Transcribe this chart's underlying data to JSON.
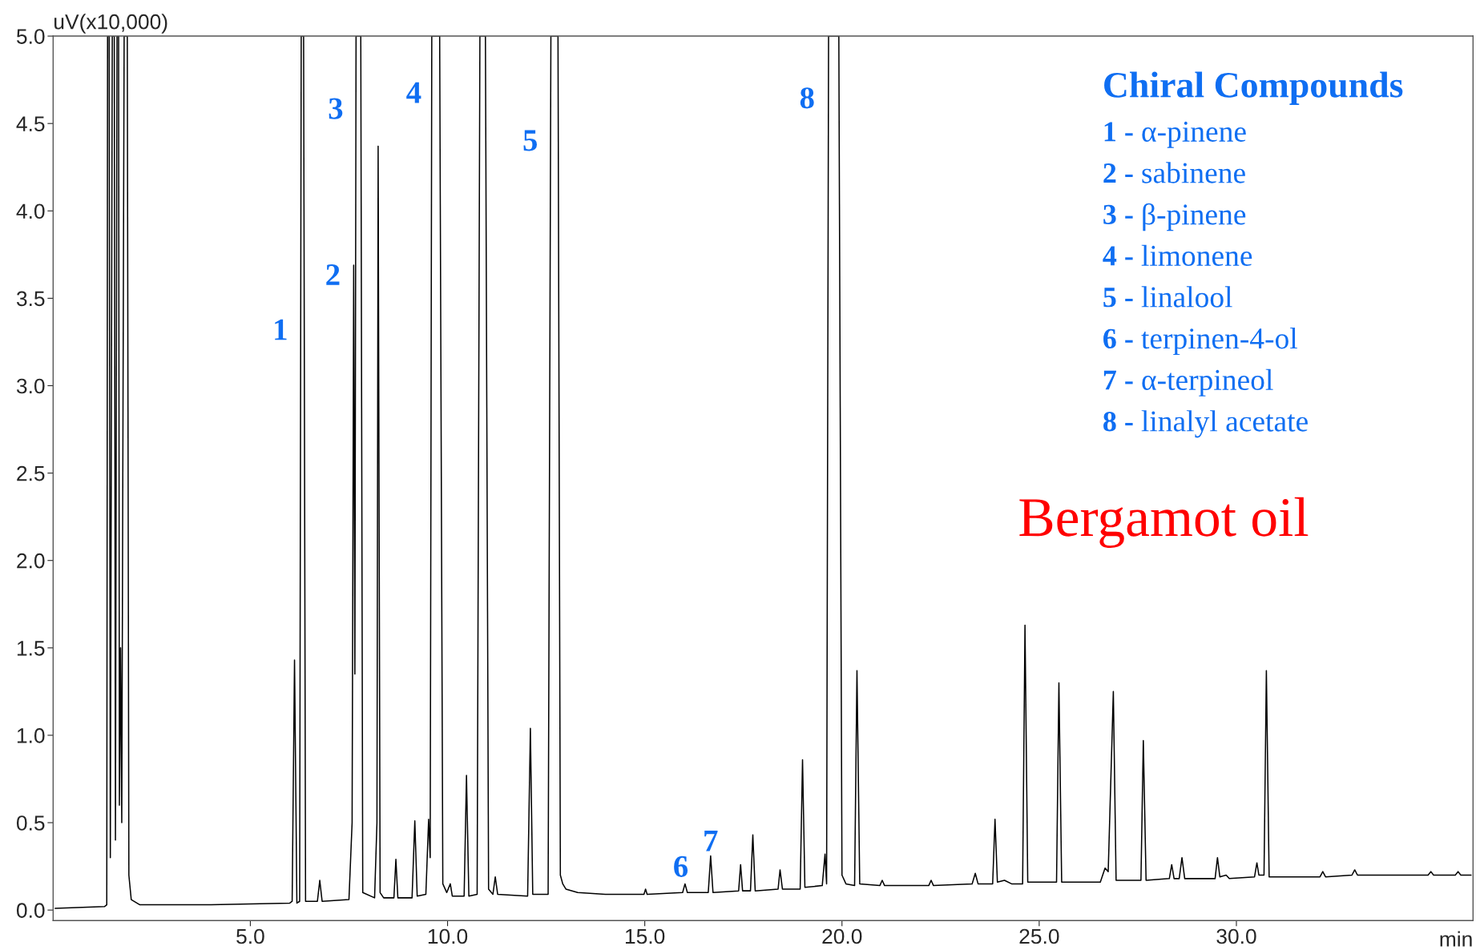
{
  "chart_data": {
    "type": "line",
    "xlabel": "min",
    "ylabel": "uV(x10,000)",
    "x": [
      0.05,
      1.3,
      1.36,
      1.38,
      1.42,
      1.45,
      1.5,
      1.55,
      1.58,
      1.62,
      1.66,
      1.68,
      1.71,
      1.74,
      1.8,
      1.88,
      1.92,
      1.98,
      2.2,
      4.0,
      6.0,
      6.06,
      6.12,
      6.18,
      6.25,
      6.29,
      6.35,
      6.4,
      6.7,
      6.76,
      6.82,
      7.5,
      7.58,
      7.62,
      7.65,
      7.68,
      7.8,
      7.85,
      8.15,
      8.21,
      8.24,
      8.29,
      8.38,
      8.64,
      8.69,
      8.74,
      9.1,
      9.17,
      9.23,
      9.45,
      9.52,
      9.56,
      9.6,
      9.8,
      9.88,
      9.98,
      10.07,
      10.12,
      10.42,
      10.48,
      10.54,
      10.75,
      10.82,
      10.96,
      11.04,
      11.15,
      11.21,
      11.27,
      12.03,
      12.1,
      12.16,
      12.55,
      12.62,
      12.8,
      12.86,
      12.92,
      13.0,
      13.3,
      14.0,
      14.98,
      15.02,
      15.06,
      15.96,
      16.02,
      16.08,
      16.61,
      16.67,
      16.73,
      17.38,
      17.43,
      17.48,
      17.68,
      17.74,
      17.8,
      18.38,
      18.43,
      18.49,
      18.94,
      19.0,
      19.06,
      19.5,
      19.57,
      19.61,
      19.66,
      19.92,
      20.0,
      20.1,
      20.32,
      20.38,
      20.45,
      20.96,
      21.02,
      21.08,
      22.2,
      22.26,
      22.32,
      23.3,
      23.38,
      23.45,
      23.82,
      23.88,
      23.94,
      24.12,
      24.3,
      24.58,
      24.64,
      24.71,
      25.44,
      25.5,
      25.57,
      26.55,
      26.67,
      26.75,
      26.88,
      26.95,
      27.58,
      27.64,
      27.71,
      28.3,
      28.36,
      28.42,
      28.55,
      28.62,
      28.69,
      29.46,
      29.52,
      29.58,
      29.74,
      29.82,
      30.46,
      30.52,
      30.57,
      30.7,
      30.76,
      30.83,
      32.12,
      32.19,
      32.26,
      32.93,
      33.0,
      33.07,
      34.86,
      34.93,
      35.0,
      35.55,
      35.62,
      35.69,
      35.95
    ],
    "series": [
      {
        "color": "#000000",
        "values": [
          0.01,
          0.02,
          0.03,
          5.0,
          5.0,
          0.3,
          5.0,
          5.0,
          0.4,
          5.0,
          5.0,
          0.6,
          1.5,
          0.5,
          5.0,
          5.0,
          0.2,
          0.06,
          0.03,
          0.03,
          0.04,
          0.05,
          1.43,
          0.04,
          0.05,
          5.0,
          5.0,
          0.05,
          0.05,
          0.17,
          0.05,
          0.06,
          0.5,
          3.69,
          1.35,
          5.0,
          5.0,
          0.1,
          0.07,
          0.5,
          4.37,
          0.1,
          0.07,
          0.07,
          0.29,
          0.07,
          0.07,
          0.51,
          0.08,
          0.09,
          0.52,
          0.3,
          5.0,
          5.0,
          0.15,
          0.1,
          0.15,
          0.08,
          0.08,
          0.77,
          0.08,
          0.09,
          5.0,
          5.0,
          0.12,
          0.09,
          0.19,
          0.09,
          0.08,
          1.04,
          0.09,
          0.09,
          5.0,
          5.0,
          0.2,
          0.15,
          0.12,
          0.1,
          0.09,
          0.09,
          0.12,
          0.09,
          0.1,
          0.15,
          0.1,
          0.1,
          0.31,
          0.1,
          0.11,
          0.26,
          0.11,
          0.11,
          0.43,
          0.11,
          0.12,
          0.23,
          0.12,
          0.12,
          0.86,
          0.13,
          0.14,
          0.32,
          0.15,
          5.0,
          5.0,
          0.2,
          0.15,
          0.14,
          1.37,
          0.15,
          0.14,
          0.17,
          0.14,
          0.14,
          0.17,
          0.14,
          0.15,
          0.21,
          0.15,
          0.15,
          0.52,
          0.16,
          0.17,
          0.15,
          0.15,
          1.63,
          0.16,
          0.16,
          1.3,
          0.16,
          0.16,
          0.24,
          0.22,
          1.25,
          0.17,
          0.17,
          0.97,
          0.17,
          0.18,
          0.26,
          0.18,
          0.18,
          0.3,
          0.18,
          0.18,
          0.3,
          0.19,
          0.2,
          0.18,
          0.19,
          0.27,
          0.2,
          0.2,
          1.37,
          0.19,
          0.19,
          0.22,
          0.19,
          0.2,
          0.23,
          0.2,
          0.2,
          0.22,
          0.2,
          0.2,
          0.22,
          0.2,
          0.2
        ]
      }
    ],
    "xlim": [
      0,
      36
    ],
    "ylim": [
      -0.06,
      5.0
    ],
    "xticks": [
      {
        "value": 5,
        "label": "5.0"
      },
      {
        "value": 10,
        "label": "10.0"
      },
      {
        "value": 15,
        "label": "15.0"
      },
      {
        "value": 20,
        "label": "20.0"
      },
      {
        "value": 25,
        "label": "25.0"
      },
      {
        "value": 30,
        "label": "30.0"
      }
    ],
    "yticks": [
      {
        "value": 0,
        "label": "0.0"
      },
      {
        "value": 0.5,
        "label": "0.5"
      },
      {
        "value": 1,
        "label": "1.0"
      },
      {
        "value": 1.5,
        "label": "1.5"
      },
      {
        "value": 2,
        "label": "2.0"
      },
      {
        "value": 2.5,
        "label": "2.5"
      },
      {
        "value": 3,
        "label": "3.0"
      },
      {
        "value": 3.5,
        "label": "3.5"
      },
      {
        "value": 4,
        "label": "4.0"
      },
      {
        "value": 4.5,
        "label": "4.5"
      },
      {
        "value": 5,
        "label": "5.0"
      }
    ],
    "annotations": [
      "1",
      "2",
      "3",
      "4",
      "5",
      "6",
      "7",
      "8",
      "Chiral Compounds",
      "1 - α-pinene",
      "2 - sabinene",
      "3 - β-pinene",
      "4 - limonene",
      "5 - linalool",
      "6 - terpinen-4-ol",
      "7 - α-terpineol",
      "8 - linalyl acetate",
      "Bergamot oil"
    ]
  }
}
